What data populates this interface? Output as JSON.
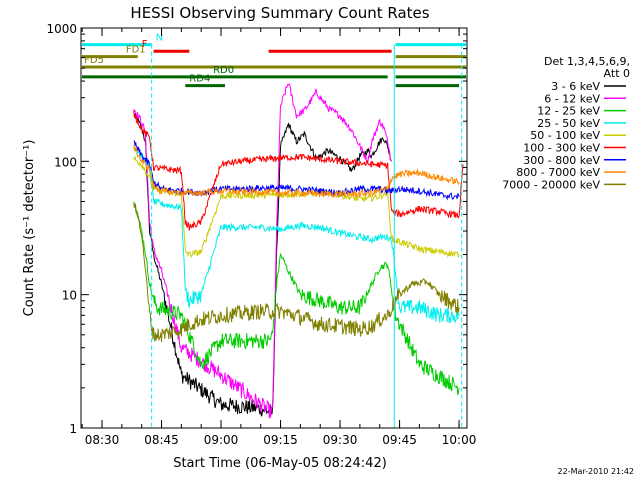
{
  "chart_data": {
    "type": "line",
    "title": "HESSI Observing Summary Count Rates",
    "xlabel": "Start Time (06-May-05 08:24:42)",
    "ylabel": "Count Rate (s⁻¹ detector⁻¹)",
    "y_scale": "log",
    "ylim": [
      1,
      1000
    ],
    "xlim": [
      "08:24:42",
      "10:02:00"
    ],
    "x_ticks": [
      "08:30",
      "08:45",
      "09:00",
      "09:15",
      "09:30",
      "09:45",
      "10:00"
    ],
    "y_ticks": [
      "1",
      "10",
      "100",
      "1000"
    ],
    "grid": false,
    "legend_placement": "right",
    "legend_header": [
      "Det 1,3,4,5,6,9,",
      "Att 0"
    ],
    "footer_date": "22-Mar-2010 21:42",
    "series": [
      {
        "name": "3 - 6 keV",
        "color": "#000000",
        "x": [
          "08:38",
          "08:39:30",
          "08:40:30",
          "08:41",
          "08:42",
          "08:43",
          "08:45",
          "08:50",
          "09:00",
          "09:10",
          "09:13",
          "09:14",
          "09:15",
          "09:17",
          "09:19",
          "09:21",
          "09:24",
          "09:27",
          "09:30",
          "09:33",
          "09:35",
          "09:37",
          "09:38",
          "09:40",
          "09:41",
          "09:42",
          "09:43"
        ],
        "y": [
          230,
          190,
          160,
          130,
          30,
          20,
          12,
          2.5,
          1.5,
          1.4,
          1.3,
          20,
          130,
          190,
          140,
          160,
          105,
          120,
          105,
          85,
          110,
          120,
          110,
          140,
          150,
          130,
          100
        ]
      },
      {
        "name": "6 - 12 keV",
        "color": "#ff00ff",
        "x": [
          "08:38",
          "08:39:30",
          "08:40:30",
          "08:41",
          "08:42",
          "08:43",
          "08:45",
          "08:50",
          "09:00",
          "09:10",
          "09:13",
          "09:14",
          "09:15",
          "09:17",
          "09:19",
          "09:21",
          "09:24",
          "09:27",
          "09:30",
          "09:33",
          "09:35",
          "09:37",
          "09:38",
          "09:40",
          "09:41",
          "09:42",
          "09:43"
        ],
        "y": [
          250,
          210,
          180,
          150,
          35,
          22,
          15,
          4,
          2.5,
          1.5,
          1.3,
          30,
          260,
          390,
          220,
          240,
          330,
          250,
          220,
          170,
          130,
          100,
          140,
          200,
          180,
          140,
          100
        ]
      },
      {
        "name": "12 - 25 keV",
        "color": "#00cc00",
        "x": [
          "08:38",
          "08:39",
          "08:40",
          "08:41",
          "08:42",
          "08:43",
          "08:44",
          "08:47",
          "08:50",
          "08:52",
          "08:55",
          "09:00",
          "09:10",
          "09:12",
          "09:13",
          "09:14",
          "09:15",
          "09:17",
          "09:20",
          "09:25",
          "09:30",
          "09:35",
          "09:38",
          "09:40",
          "09:42",
          "09:44",
          "09:50",
          "10:00"
        ],
        "y": [
          50,
          40,
          30,
          20,
          12,
          9,
          8,
          7.5,
          7,
          5,
          3,
          4.5,
          4.5,
          4.5,
          5,
          12,
          20,
          15,
          10,
          9,
          8,
          8,
          12,
          16,
          17,
          7,
          3,
          2
        ]
      },
      {
        "name": "25 - 50 keV",
        "color": "#00eeee",
        "x": [
          "08:38",
          "08:40",
          "08:42",
          "08:43",
          "08:45",
          "08:50",
          "08:51",
          "08:52",
          "08:55",
          "09:00",
          "09:10",
          "09:15",
          "09:20",
          "09:25",
          "09:30",
          "09:35",
          "09:38",
          "09:40",
          "09:42",
          "09:43",
          "09:45",
          "09:50",
          "09:55",
          "10:00"
        ],
        "y": [
          130,
          110,
          90,
          50,
          48,
          45,
          11,
          9,
          10,
          32,
          32,
          31,
          33,
          32,
          29,
          27,
          26,
          27,
          27,
          26,
          8,
          8,
          7,
          7
        ]
      },
      {
        "name": "50 - 100 keV",
        "color": "#cccc00",
        "x": [
          "08:38",
          "08:40",
          "08:42",
          "08:43",
          "08:45",
          "08:50",
          "08:51",
          "08:52",
          "08:55",
          "09:00",
          "09:10",
          "09:15",
          "09:20",
          "09:25",
          "09:30",
          "09:35",
          "09:38",
          "09:40",
          "09:42",
          "09:43",
          "09:45",
          "09:50",
          "09:55",
          "10:00"
        ],
        "y": [
          105,
          95,
          75,
          62,
          60,
          57,
          21,
          20,
          21,
          55,
          56,
          56,
          57,
          58,
          56,
          52,
          53,
          55,
          58,
          26,
          25,
          22,
          21,
          20
        ]
      },
      {
        "name": "100 - 300 keV",
        "color": "#ff0000",
        "x": [
          "08:38",
          "08:40",
          "08:42",
          "08:43",
          "08:45",
          "08:50",
          "08:51",
          "08:52",
          "08:55",
          "09:00",
          "09:05",
          "09:10",
          "09:15",
          "09:20",
          "09:25",
          "09:30",
          "09:35",
          "09:38",
          "09:40",
          "09:42",
          "09:43",
          "09:45",
          "09:50",
          "09:55",
          "10:00",
          "10:01"
        ],
        "y": [
          230,
          175,
          150,
          90,
          88,
          85,
          35,
          32,
          35,
          95,
          100,
          103,
          106,
          108,
          104,
          100,
          97,
          95,
          94,
          93,
          42,
          40,
          44,
          42,
          39,
          95
        ]
      },
      {
        "name": "300 - 800 keV",
        "color": "#0000ff",
        "x": [
          "08:38",
          "08:40",
          "08:42",
          "08:43",
          "08:45",
          "08:50",
          "08:55",
          "09:00",
          "09:05",
          "09:10",
          "09:15",
          "09:20",
          "09:25",
          "09:30",
          "09:35",
          "09:38",
          "09:40",
          "09:42",
          "09:43",
          "09:45",
          "09:50",
          "09:55",
          "10:00"
        ],
        "y": [
          140,
          110,
          95,
          70,
          62,
          60,
          58,
          62,
          62,
          63,
          63,
          62,
          60,
          58,
          62,
          62,
          62,
          60,
          60,
          62,
          60,
          56,
          54
        ]
      },
      {
        "name": "800 - 7000 keV",
        "color": "#ff8800",
        "x": [
          "08:38",
          "08:40",
          "08:42",
          "08:43",
          "08:45",
          "08:50",
          "08:55",
          "09:00",
          "09:05",
          "09:10",
          "09:15",
          "09:20",
          "09:25",
          "09:30",
          "09:35",
          "09:38",
          "09:40",
          "09:42",
          "09:43",
          "09:45",
          "09:50",
          "09:55",
          "10:00"
        ],
        "y": [
          130,
          100,
          88,
          65,
          60,
          58,
          58,
          60,
          59,
          59,
          58,
          58,
          57,
          57,
          57,
          58,
          60,
          62,
          75,
          80,
          82,
          75,
          70
        ]
      },
      {
        "name": "7000 - 20000 keV",
        "color": "#808000",
        "x": [
          "08:38",
          "08:39",
          "08:40",
          "08:41",
          "08:42",
          "08:43",
          "08:45",
          "08:50",
          "08:52",
          "08:55",
          "09:00",
          "09:10",
          "09:15",
          "09:20",
          "09:25",
          "09:30",
          "09:35",
          "09:38",
          "09:40",
          "09:42",
          "09:43",
          "09:45",
          "09:48",
          "09:52",
          "09:55",
          "10:00"
        ],
        "y": [
          48,
          40,
          28,
          15,
          7,
          5,
          5,
          5.5,
          6,
          6.5,
          7,
          7.5,
          7.5,
          6.8,
          6,
          5.8,
          5.5,
          5.8,
          6.5,
          7,
          8,
          10,
          12,
          12.5,
          10,
          8
        ]
      }
    ],
    "flag_bars": [
      {
        "label": "N",
        "color": "#00eeee",
        "y": 750,
        "segments": [
          [
            "08:24:42",
            "08:42:30"
          ],
          [
            "09:44",
            "10:02"
          ]
        ]
      },
      {
        "label": "F",
        "color": "#ee0000",
        "y": 670,
        "segments": [
          [
            "08:43",
            "08:52"
          ],
          [
            "09:12",
            "09:43"
          ]
        ]
      },
      {
        "label": "FD1",
        "color": "#808000",
        "y": 610,
        "segments": [
          [
            "08:24:42",
            "08:39"
          ],
          [
            "09:44",
            "10:02"
          ]
        ]
      },
      {
        "label": "FD5",
        "color": "#808000",
        "y": 510,
        "segments": [
          [
            "08:24:42",
            "10:02"
          ]
        ]
      },
      {
        "label": "RD0",
        "color": "#006600",
        "y": 430,
        "segments": [
          [
            "08:24:42",
            "09:42"
          ],
          [
            "09:44",
            "10:02"
          ]
        ]
      },
      {
        "label": "RD4",
        "color": "#006600",
        "y": 370,
        "segments": [
          [
            "08:51",
            "09:01"
          ],
          [
            "09:44",
            "10:00"
          ]
        ]
      }
    ],
    "vertical_markers": [
      {
        "color": "#00eeee",
        "dashed": false,
        "x": "08:24:42"
      },
      {
        "color": "#00eeee",
        "dashed": true,
        "x": "08:42:30"
      },
      {
        "color": "#00eeee",
        "dashed": false,
        "x": "09:43:40"
      },
      {
        "color": "#00eeee",
        "dashed": true,
        "x": "10:00:40"
      }
    ]
  }
}
